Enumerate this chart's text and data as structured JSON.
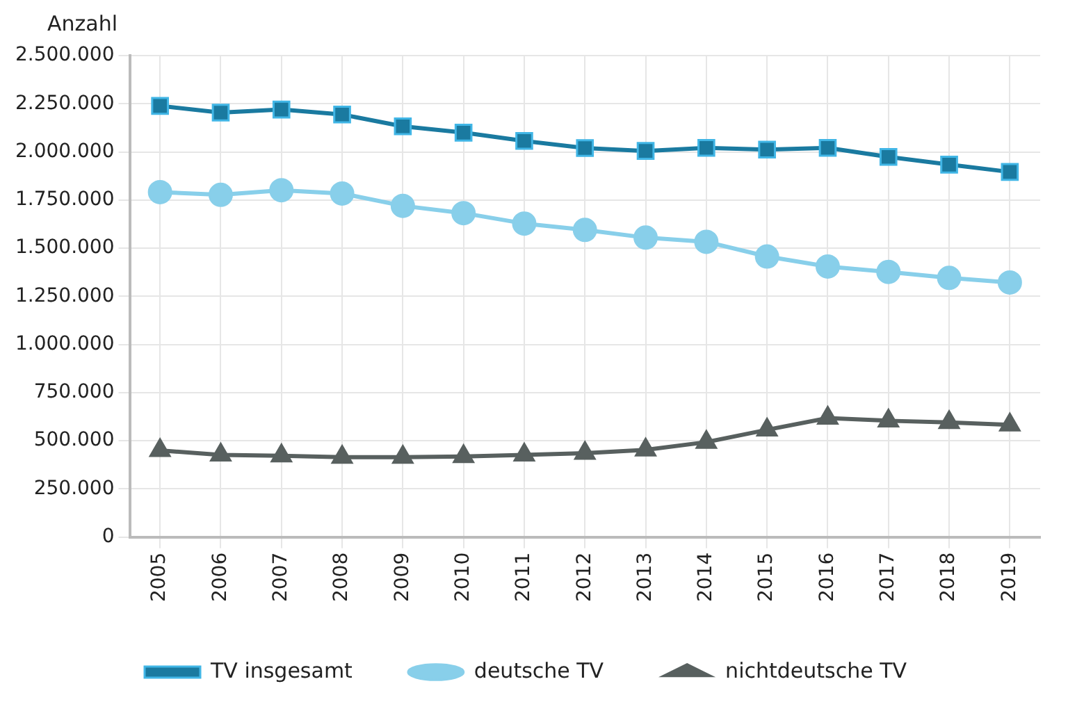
{
  "chart_data": {
    "type": "line",
    "ylabel": "Anzahl",
    "categories": [
      "2005",
      "2006",
      "2007",
      "2008",
      "2009",
      "2010",
      "2011",
      "2012",
      "2013",
      "2014",
      "2015",
      "2016",
      "2017",
      "2018",
      "2019"
    ],
    "series": [
      {
        "name": "TV insgesamt",
        "color": "#1a7aa0",
        "marker": "square",
        "values": [
          2239000,
          2204000,
          2220000,
          2194000,
          2133000,
          2100000,
          2057000,
          2020000,
          2005000,
          2021000,
          2012000,
          2021000,
          1974000,
          1934000,
          1896000
        ]
      },
      {
        "name": "deutsche TV",
        "color": "#88cfea",
        "marker": "circle",
        "values": [
          1791000,
          1777000,
          1801000,
          1784000,
          1720000,
          1682000,
          1628000,
          1595000,
          1555000,
          1533000,
          1457000,
          1405000,
          1377000,
          1346000,
          1322000
        ]
      },
      {
        "name": "nichtdeutsche TV",
        "color": "#58605f",
        "marker": "triangle",
        "values": [
          450000,
          427000,
          422000,
          415000,
          415000,
          419000,
          427000,
          436000,
          453000,
          493000,
          557000,
          618000,
          604000,
          595000,
          583000
        ]
      }
    ],
    "ylim": [
      0,
      2500000
    ],
    "yticks": [
      0,
      {
        "value": 250000,
        "label": "250.000"
      },
      {
        "value": 500000,
        "label": "500.000"
      },
      {
        "value": 750000,
        "label": "750.000"
      },
      {
        "value": 1000000,
        "label": "1.000.000"
      },
      {
        "value": 1250000,
        "label": "1.250.000"
      },
      {
        "value": 1500000,
        "label": "1.500.000"
      },
      {
        "value": 1750000,
        "label": "1.750.000"
      },
      {
        "value": 2000000,
        "label": "2.000.000"
      },
      {
        "value": 2250000,
        "label": "2.250.000"
      },
      {
        "value": 2500000,
        "label": "2.500.000"
      }
    ],
    "grid": true,
    "legend": "bottom"
  }
}
